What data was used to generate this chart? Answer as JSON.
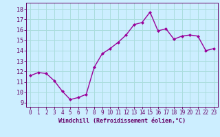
{
  "x": [
    0,
    1,
    2,
    3,
    4,
    5,
    6,
    7,
    8,
    9,
    10,
    11,
    12,
    13,
    14,
    15,
    16,
    17,
    18,
    19,
    20,
    21,
    22,
    23
  ],
  "y": [
    11.6,
    11.9,
    11.8,
    11.1,
    10.1,
    9.3,
    9.5,
    9.8,
    12.4,
    13.7,
    14.2,
    14.8,
    15.5,
    16.5,
    16.7,
    17.7,
    15.9,
    16.1,
    15.1,
    15.4,
    15.5,
    15.4,
    14.0,
    14.2
  ],
  "line_color": "#990099",
  "marker": "D",
  "marker_size": 2.0,
  "bg_color": "#cceeff",
  "grid_color": "#aadddd",
  "yticks": [
    9,
    10,
    11,
    12,
    13,
    14,
    15,
    16,
    17,
    18
  ],
  "xlabel": "Windchill (Refroidissement éolien,°C)",
  "xlim": [
    -0.5,
    23.5
  ],
  "ylim": [
    8.6,
    18.6
  ],
  "text_color": "#660066",
  "tick_fontsize": 5.5,
  "xlabel_fontsize": 6.0
}
